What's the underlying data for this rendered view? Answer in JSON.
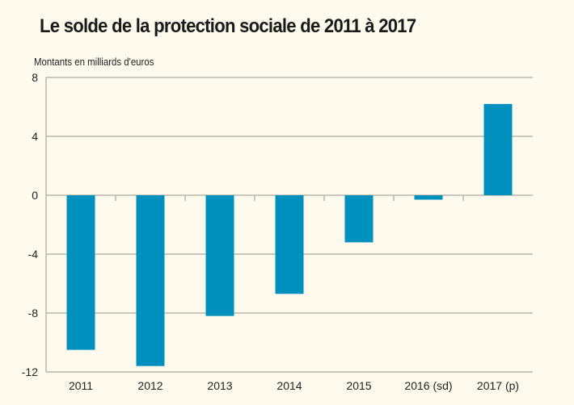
{
  "chart_data": {
    "type": "bar",
    "title": "Le solde de la protection sociale de 2011 à 2017",
    "subtitle": "Montants en milliards d'euros",
    "xlabel": "",
    "ylabel": "Montants en milliards d'euros",
    "categories": [
      "2011",
      "2012",
      "2013",
      "2014",
      "2015",
      "2016 (sd)",
      "2017 (p)"
    ],
    "values": [
      -10.5,
      -11.6,
      -8.2,
      -6.7,
      -3.2,
      -0.3,
      6.2
    ],
    "ylim": [
      -12,
      8
    ],
    "yticks": [
      8,
      4,
      0,
      -4,
      -8,
      -12
    ],
    "ytick_labels": [
      "8",
      "4",
      "0",
      "-4",
      "-8",
      "-12"
    ],
    "grid": true,
    "legend": "none",
    "colors": {
      "bar": "#0090be",
      "grid": "#b8b6ac",
      "background": "#fefbee"
    }
  }
}
